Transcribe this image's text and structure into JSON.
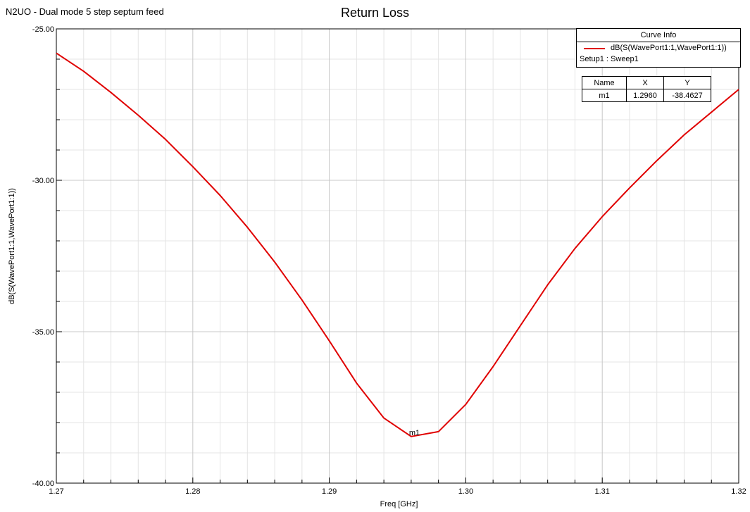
{
  "header": {
    "subtitle": "N2UO - Dual mode 5 step septum feed",
    "title": "Return Loss"
  },
  "curve_info": {
    "heading": "Curve Info",
    "series_label": "dB(S(WavePort1:1,WavePort1:1))",
    "setup_label": "Setup1 : Sweep1"
  },
  "marker_table": {
    "headers": [
      "Name",
      "X",
      "Y"
    ],
    "rows": [
      [
        "m1",
        "1.2960",
        "-38.4627"
      ]
    ]
  },
  "chart_data": {
    "type": "line",
    "title": "Return Loss",
    "xlabel": "Freq [GHz]",
    "ylabel": "dB(S(WavePort1:1,WavePort1:1))",
    "xlim": [
      1.27,
      1.32
    ],
    "ylim": [
      -40.0,
      -25.0
    ],
    "x_ticks": [
      "1.27",
      "1.28",
      "1.29",
      "1.30",
      "1.31",
      "1.32"
    ],
    "y_ticks": [
      "-25.00",
      "-30.00",
      "-35.00",
      "-40.00"
    ],
    "grid": true,
    "legend_position": "top-right",
    "color": "#e00000",
    "series": [
      {
        "name": "dB(S(WavePort1:1,WavePort1:1))",
        "x": [
          1.27,
          1.272,
          1.274,
          1.276,
          1.278,
          1.28,
          1.282,
          1.284,
          1.286,
          1.288,
          1.29,
          1.292,
          1.294,
          1.296,
          1.298,
          1.3,
          1.302,
          1.304,
          1.306,
          1.308,
          1.31,
          1.312,
          1.314,
          1.316,
          1.318,
          1.32
        ],
        "y": [
          -25.8,
          -26.4,
          -27.1,
          -27.85,
          -28.65,
          -29.55,
          -30.5,
          -31.55,
          -32.7,
          -33.95,
          -35.3,
          -36.7,
          -37.85,
          -38.46,
          -38.3,
          -37.4,
          -36.15,
          -34.8,
          -33.45,
          -32.25,
          -31.2,
          -30.25,
          -29.35,
          -28.5,
          -27.75,
          -27.0
        ]
      }
    ],
    "markers": [
      {
        "name": "m1",
        "x": 1.296,
        "y": -38.4627
      }
    ]
  }
}
